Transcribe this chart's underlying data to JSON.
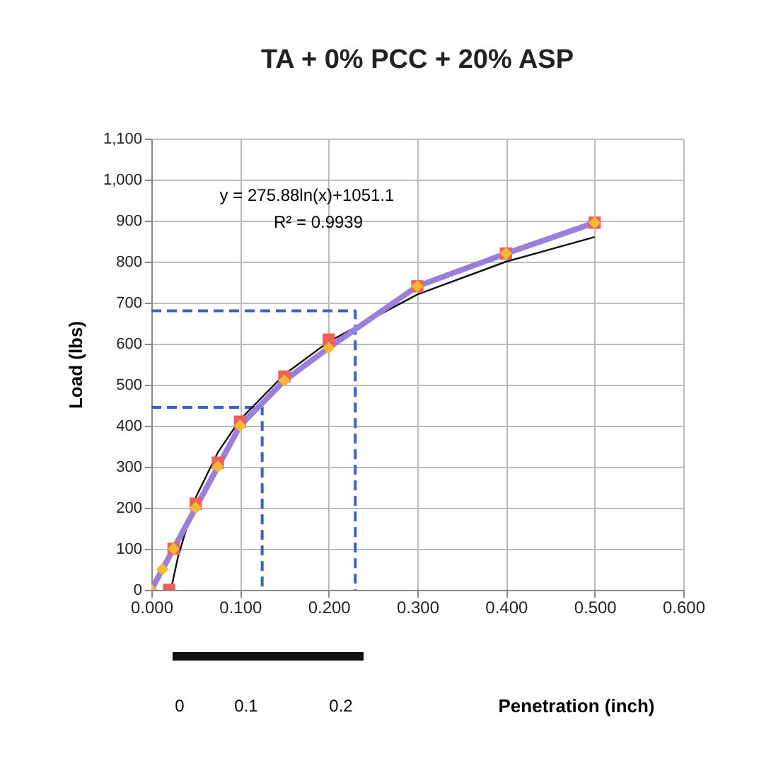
{
  "chart_data": {
    "type": "line",
    "title": "TA + 0% PCC + 20% ASP",
    "xlabel": "Penetration (inch)",
    "ylabel": "Load (lbs)",
    "xlim": [
      0,
      0.6
    ],
    "xticks": [
      {
        "value": 0,
        "label": "0.000"
      },
      {
        "value": 0.1,
        "label": "0.100"
      },
      {
        "value": 0.2,
        "label": "0.200"
      },
      {
        "value": 0.3,
        "label": "0.300"
      },
      {
        "value": 0.4,
        "label": "0.400"
      },
      {
        "value": 0.5,
        "label": "0.500"
      },
      {
        "value": 0.6,
        "label": "0.600"
      }
    ],
    "ylim": [
      0,
      1100
    ],
    "yticks": [
      0,
      100,
      200,
      300,
      400,
      500,
      600,
      700,
      800,
      900,
      {
        "value": 1000,
        "label": "1,000"
      },
      {
        "value": 1100,
        "label": "1,100"
      }
    ],
    "grid": true,
    "series": [
      {
        "color": "#3c5fc8",
        "line_style": "dashed",
        "x": [
          0,
          0.23,
          0.23
        ],
        "values": [
          680,
          680,
          0
        ]
      },
      {
        "color": "#3c5fc8",
        "line_style": "dashed",
        "x": [
          0,
          0.125,
          0.125
        ],
        "values": [
          445,
          445,
          0
        ]
      },
      {
        "color": "#111111",
        "x": [
          0.022,
          0.03,
          0.05,
          0.075,
          0.1,
          0.15,
          0.2,
          0.3,
          0.4,
          0.5
        ],
        "values": [
          0,
          80,
          225,
          335,
          415,
          525,
          605,
          720,
          800,
          860
        ]
      },
      {
        "color": "#9a7fdc",
        "marker": "none",
        "x": [
          0,
          0.0125,
          0.025,
          0.05,
          0.075,
          0.1,
          0.15,
          0.2,
          0.3,
          0.4,
          0.5
        ],
        "values": [
          0,
          50,
          100,
          200,
          300,
          400,
          510,
          590,
          740,
          820,
          895
        ]
      },
      {
        "type": "scatter",
        "color": "#f0605a",
        "marker": "square",
        "x": [
          0.02,
          0.025,
          0.05,
          0.075,
          0.1,
          0.15,
          0.2,
          0.3,
          0.4,
          0.5
        ],
        "values": [
          0,
          100,
          210,
          310,
          410,
          520,
          610,
          740,
          820,
          895
        ]
      },
      {
        "type": "scatter",
        "color": "#f5b932",
        "marker": "diamond",
        "x": [
          0,
          0.0125,
          0.025,
          0.05,
          0.075,
          0.1,
          0.15,
          0.2,
          0.3,
          0.4,
          0.5
        ],
        "values": [
          0,
          50,
          100,
          200,
          300,
          400,
          510,
          590,
          740,
          820,
          895
        ]
      }
    ],
    "annotations": [
      "y = 275.88ln(x)+1051.1",
      "R² = 0.9939",
      "0",
      "0.1",
      "0.2"
    ]
  }
}
